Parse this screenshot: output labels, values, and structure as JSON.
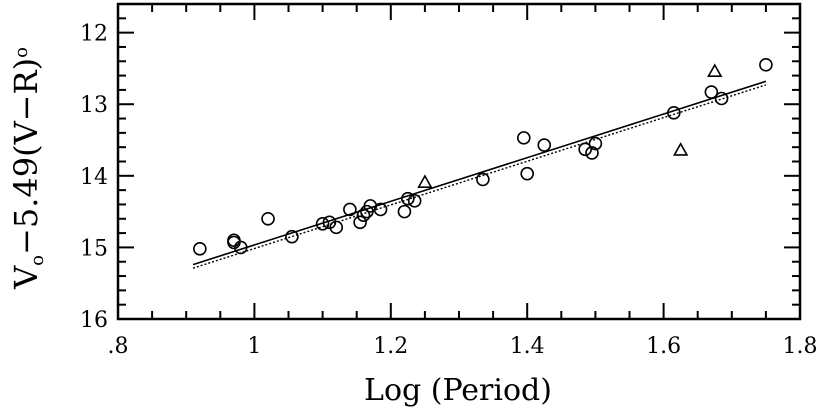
{
  "chart_data": {
    "type": "scatter",
    "title": "",
    "xlabel": "Log (Period)",
    "ylabel": {
      "v": "V",
      "sub1": "o",
      "middle": "−5.49(V−R)",
      "sub2": "o"
    },
    "xlim": [
      0.8,
      1.8
    ],
    "ylim": [
      16,
      11.6
    ],
    "y_inverted": true,
    "grid": false,
    "x_ticks": [
      {
        "value": 0.8,
        "label": ".8"
      },
      {
        "value": 1.0,
        "label": "1"
      },
      {
        "value": 1.2,
        "label": "1.2"
      },
      {
        "value": 1.4,
        "label": "1.4"
      },
      {
        "value": 1.6,
        "label": "1.6"
      },
      {
        "value": 1.8,
        "label": "1.8"
      }
    ],
    "x_minor_step": 0.05,
    "y_ticks": [
      {
        "value": 12,
        "label": "12"
      },
      {
        "value": 13,
        "label": "13"
      },
      {
        "value": 14,
        "label": "14"
      },
      {
        "value": 15,
        "label": "15"
      },
      {
        "value": 16,
        "label": "16"
      }
    ],
    "y_minor_step": 0.2,
    "series": [
      {
        "marker": "circle",
        "x": [
          0.92,
          0.97,
          0.98,
          0.97,
          1.02,
          1.055,
          1.1,
          1.11,
          1.12,
          1.14,
          1.155,
          1.16,
          1.165,
          1.17,
          1.185,
          1.22,
          1.225,
          1.235,
          1.335,
          1.395,
          1.4,
          1.425,
          1.485,
          1.495,
          1.5,
          1.615,
          1.67,
          1.685,
          1.75
        ],
        "y": [
          15.02,
          14.9,
          15.0,
          14.93,
          14.6,
          14.85,
          14.67,
          14.65,
          14.72,
          14.47,
          14.65,
          14.55,
          14.5,
          14.42,
          14.47,
          14.5,
          14.32,
          14.35,
          14.05,
          13.47,
          13.97,
          13.57,
          13.63,
          13.68,
          13.55,
          13.12,
          12.83,
          12.92,
          12.45
        ]
      },
      {
        "marker": "triangle",
        "x": [
          1.25,
          1.625,
          1.675
        ],
        "y": [
          14.1,
          13.65,
          12.55
        ]
      }
    ],
    "fit_lines": [
      {
        "style": "solid",
        "x": [
          0.91,
          1.75
        ],
        "y": [
          15.24,
          12.68
        ]
      },
      {
        "style": "dotted",
        "x": [
          0.91,
          1.75
        ],
        "y": [
          15.29,
          12.73
        ]
      }
    ]
  }
}
